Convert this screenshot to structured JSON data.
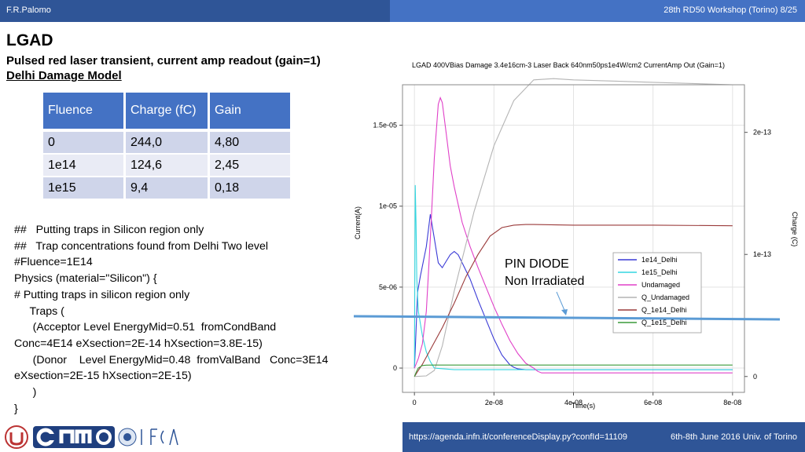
{
  "header": {
    "author": "F.R.Palomo",
    "right_text": "28th RD50 Workshop (Torino) 8/25"
  },
  "slide": {
    "title": "LGAD",
    "subtitle": "Pulsed red laser transient, current amp readout (gain=1)",
    "subtitle2": "Delhi Damage Model"
  },
  "table": {
    "headers": [
      "Fluence",
      "Charge (fC)",
      "Gain"
    ],
    "rows": [
      [
        "0",
        "244,0",
        "4,80"
      ],
      [
        "1e14",
        "124,6",
        "2,45"
      ],
      [
        "1e15",
        "9,4",
        "0,18"
      ]
    ]
  },
  "code_lines": [
    "##   Putting traps in Silicon region only",
    "##   Trap concentrations found from Delhi Two level",
    "#Fluence=1E14",
    "Physics (material=\"Silicon\") {",
    "# Putting traps in silicon region only",
    "     Traps (",
    "      (Acceptor Level EnergyMid=0.51  fromCondBand",
    "Conc=4E14 eXsection=2E-14 hXsection=3.8E-15)",
    "      (Donor    Level EnergyMid=0.48  fromValBand   Conc=3E14",
    "eXsection=2E-15 hXsection=2E-15)",
    "      )",
    "}"
  ],
  "annotation": {
    "line1": "PIN DIODE",
    "line2": "Non  Irradiated"
  },
  "footer": {
    "url": "https://agenda.infn.it/conferenceDisplay.py?confId=11109",
    "right_text": "6th-8th June  2016  Univ. of Torino"
  },
  "logos": [
    "university-seal-logo",
    "cnm-logo",
    "ifca-logo"
  ],
  "colors": {
    "header_dark": "#2f5597",
    "header_light": "#4472c4",
    "table_header": "#4472c4",
    "blue_line": "#5b9bd5"
  },
  "chart_data": {
    "type": "line",
    "title": "LGAD 400VBias Damage 3.4e16cm-3 Laser Back 640nm50ps1e4W/cm2 CurrentAmp Out (Gain=1)",
    "xlabel": "Time(s)",
    "ylabel": "Current(A)",
    "y2label": "Charge (C)",
    "xlim": [
      -3e-09,
      8.3e-08
    ],
    "ylim": [
      -1.5e-06,
      1.75e-05
    ],
    "y2lim": [
      -1.3e-14,
      2.39e-13
    ],
    "xticks": [
      {
        "value": 0,
        "label": "0"
      },
      {
        "value": 2e-08,
        "label": "2e-08"
      },
      {
        "value": 4e-08,
        "label": "4e-08"
      },
      {
        "value": 6e-08,
        "label": "6e-08"
      },
      {
        "value": 8e-08,
        "label": "8e-08"
      }
    ],
    "yticks": [
      {
        "value": 0,
        "label": "0"
      },
      {
        "value": 5e-06,
        "label": "5e-06"
      },
      {
        "value": 1e-05,
        "label": "1e-05"
      },
      {
        "value": 1.5e-05,
        "label": "1.5e-05"
      }
    ],
    "y2ticks": [
      {
        "value": 0,
        "label": "0"
      },
      {
        "value": 1e-13,
        "label": "1e-13"
      },
      {
        "value": 2e-13,
        "label": "2e-13"
      }
    ],
    "grid": true,
    "legend_position": "lower-right",
    "series": [
      {
        "name": "1e14_Delhi",
        "axis": "left",
        "color": "#3a3ad6",
        "x": [
          0,
          3e-10,
          8e-10,
          1.5e-09,
          3e-09,
          4e-09,
          5e-09,
          6e-09,
          7e-09,
          8e-09,
          9e-09,
          1e-08,
          1.1e-08,
          1.2e-08,
          1.4e-08,
          1.6e-08,
          1.8e-08,
          2e-08,
          2.2e-08,
          2.4e-08,
          2.5e-08,
          2.6e-08,
          2.8e-08,
          3e-08,
          5e-08,
          8e-08
        ],
        "y": [
          0,
          1.7e-06,
          4.7e-06,
          5.7e-06,
          7.5e-06,
          9.5e-06,
          8e-06,
          6.5e-06,
          6.2e-06,
          6.6e-06,
          7e-06,
          7.2e-06,
          7e-06,
          6.5e-06,
          5.5e-06,
          4.2e-06,
          3e-06,
          1.8e-06,
          8e-07,
          2e-07,
          5e-08,
          -5e-08,
          -1e-07,
          -1e-07,
          -1e-07,
          -1e-07
        ]
      },
      {
        "name": "1e15_Delhi",
        "axis": "left",
        "color": "#33d6e0",
        "x": [
          0,
          2e-10,
          4e-10,
          6e-10,
          1e-09,
          2e-09,
          3e-09,
          4e-09,
          5e-09,
          1e-08,
          8e-08
        ],
        "y": [
          0,
          1.13e-05,
          9e-06,
          5.5e-06,
          3.5e-06,
          2e-06,
          1e-06,
          4e-07,
          0,
          -1e-07,
          -1e-07
        ]
      },
      {
        "name": "Undamaged",
        "axis": "left",
        "color": "#e040c8",
        "x": [
          0,
          1e-09,
          2e-09,
          3e-09,
          4e-09,
          5e-09,
          6e-09,
          6.5e-09,
          7e-09,
          8e-09,
          9e-09,
          1e-08,
          1.2e-08,
          1.4e-08,
          1.6e-08,
          1.8e-08,
          2e-08,
          2.2e-08,
          2.4e-08,
          2.6e-08,
          2.8e-08,
          3e-08,
          3.1e-08,
          3.2e-08,
          3.4e-08,
          8e-08
        ],
        "y": [
          0,
          6e-07,
          1.5e-06,
          3.5e-06,
          8e-06,
          1.3e-05,
          1.63e-05,
          1.67e-05,
          1.64e-05,
          1.45e-05,
          1.25e-05,
          1.12e-05,
          9e-06,
          7.5e-06,
          6.2e-06,
          5e-06,
          3.8e-06,
          2.7e-06,
          1.7e-06,
          9e-07,
          3e-07,
          0,
          -2e-07,
          -3e-07,
          -3e-07,
          -3e-07
        ]
      },
      {
        "name": "Q_Undamaged",
        "axis": "right",
        "color": "#b4b4b4",
        "x": [
          0,
          3e-09,
          5e-09,
          7e-09,
          1e-08,
          1.5e-08,
          2e-08,
          2.5e-08,
          3e-08,
          3.5e-08,
          4e-08,
          5e-08,
          6e-08,
          7e-08,
          8e-08
        ],
        "y": [
          0,
          5e-16,
          5e-15,
          2.5e-14,
          7e-14,
          1.35e-13,
          1.89e-13,
          2.26e-13,
          2.43e-13,
          2.44e-13,
          2.43e-13,
          2.42e-13,
          2.41e-13,
          2.4e-13,
          2.39e-13
        ]
      },
      {
        "name": "Q_1e14_Delhi",
        "axis": "right",
        "color": "#9a3a3a",
        "x": [
          0,
          1e-09,
          2e-09,
          4e-09,
          7e-09,
          1e-08,
          1.3e-08,
          1.6e-08,
          1.9e-08,
          2.2e-08,
          2.5e-08,
          2.8e-08,
          3e-08,
          4e-08,
          6e-08,
          8e-08
        ],
        "y": [
          0,
          5e-15,
          1e-14,
          2.2e-14,
          4e-14,
          6e-14,
          8.2e-14,
          1e-13,
          1.15e-13,
          1.22e-13,
          1.24e-13,
          1.245e-13,
          1.245e-13,
          1.24e-13,
          1.24e-13,
          1.235e-13
        ]
      },
      {
        "name": "Q_1e15_Delhi",
        "axis": "right",
        "color": "#3a9a3a",
        "x": [
          0,
          5e-10,
          1e-09,
          2e-09,
          3e-09,
          5e-09,
          1e-08,
          2e-08,
          4e-08,
          6e-08,
          8e-08
        ],
        "y": [
          0,
          4e-15,
          7e-15,
          9e-15,
          9.3e-15,
          9.4e-15,
          9.4e-15,
          9.4e-15,
          9.4e-15,
          9.4e-15,
          9.4e-15
        ]
      }
    ]
  }
}
